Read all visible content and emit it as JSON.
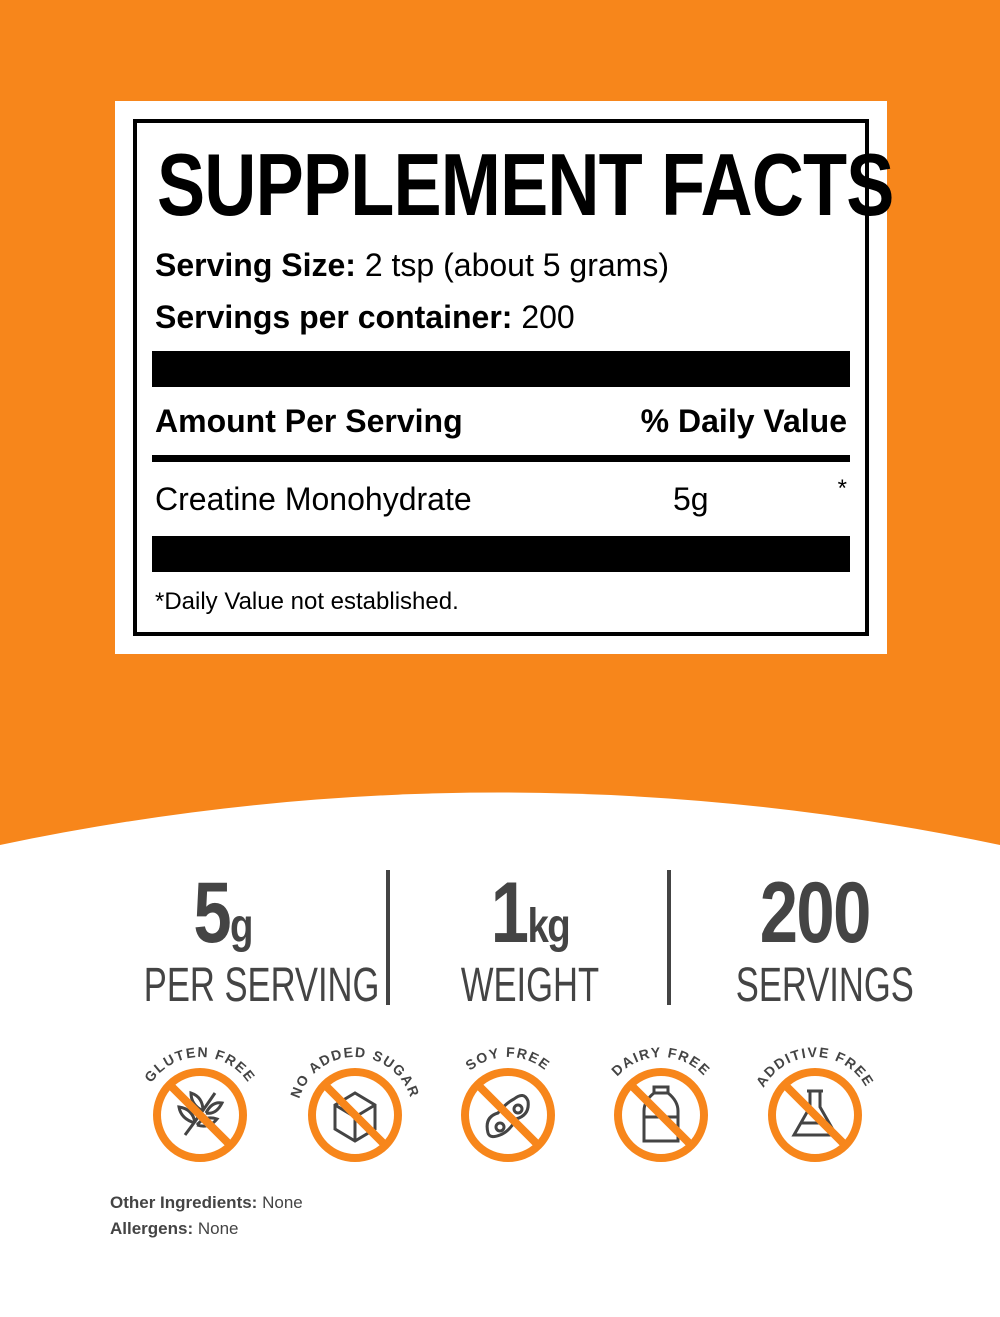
{
  "colors": {
    "orange": "#f7861b",
    "dark": "#444444"
  },
  "facts": {
    "title": "SUPPLEMENT FACTS",
    "serving_size_label": "Serving Size:",
    "serving_size_value": "2 tsp (about 5 grams)",
    "servings_label": "Servings per container:",
    "servings_value": "200",
    "amount_header": "Amount Per Serving",
    "dv_header": "% Daily Value",
    "ingredient": {
      "name": "Creatine Monohydrate",
      "amount": "5g",
      "dv": "*"
    },
    "footnote": "*Daily Value not established."
  },
  "stats": [
    {
      "value": "5",
      "unit": "g",
      "label": "PER SERVING"
    },
    {
      "value": "1",
      "unit": "kg",
      "label": "WEIGHT"
    },
    {
      "value": "200",
      "unit": "",
      "label": "SERVINGS"
    }
  ],
  "badges": [
    {
      "label": "GLUTEN FREE",
      "icon": "wheat-icon"
    },
    {
      "label": "NO ADDED SUGAR",
      "icon": "sugar-cube-icon"
    },
    {
      "label": "SOY FREE",
      "icon": "soybean-icon"
    },
    {
      "label": "DAIRY FREE",
      "icon": "milk-bottle-icon"
    },
    {
      "label": "ADDITIVE FREE",
      "icon": "flask-icon"
    }
  ],
  "other": {
    "ingredients_label": "Other Ingredients:",
    "ingredients_value": "None",
    "allergens_label": "Allergens:",
    "allergens_value": "None"
  }
}
